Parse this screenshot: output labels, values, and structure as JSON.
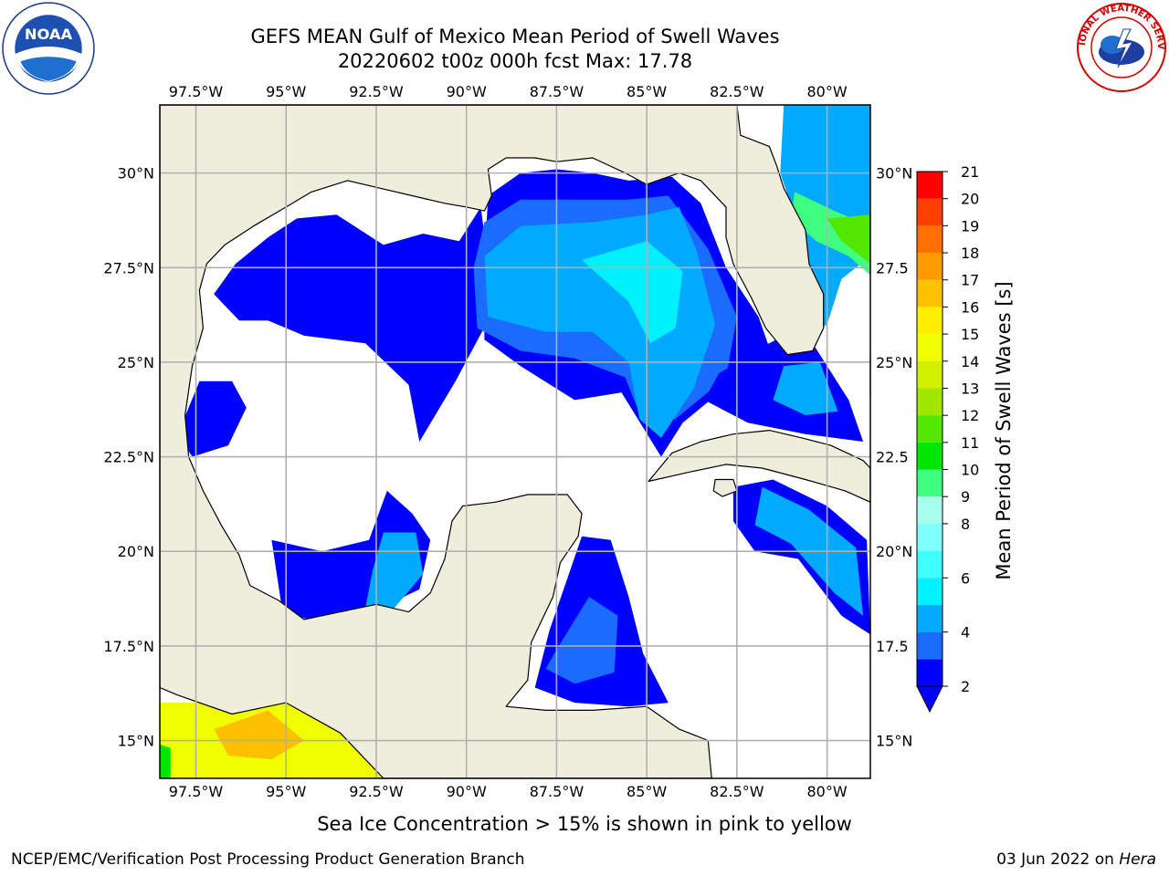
{
  "title": {
    "line1": "GEFS MEAN Gulf of Mexico Mean Period of Swell Waves",
    "line2": "20220602 t00z 000h fcst   Max: 17.78"
  },
  "map": {
    "lon_range": [
      -98.5,
      -78.8
    ],
    "lat_range": [
      14.0,
      31.8
    ],
    "lon_ticks": [
      {
        "value": -97.5,
        "label": "97.5°W"
      },
      {
        "value": -95.0,
        "label": "95°W"
      },
      {
        "value": -92.5,
        "label": "92.5°W"
      },
      {
        "value": -90.0,
        "label": "90°W"
      },
      {
        "value": -87.5,
        "label": "87.5°W"
      },
      {
        "value": -85.0,
        "label": "85°W"
      },
      {
        "value": -82.5,
        "label": "82.5°W"
      },
      {
        "value": -80.0,
        "label": "80°W"
      }
    ],
    "lat_ticks_left": [
      {
        "value": 30.0,
        "label": "30°N"
      },
      {
        "value": 27.5,
        "label": "27.5°N"
      },
      {
        "value": 25.0,
        "label": "25°N"
      },
      {
        "value": 22.5,
        "label": "22.5°N"
      },
      {
        "value": 20.0,
        "label": "20°N"
      },
      {
        "value": 17.5,
        "label": "17.5°N"
      },
      {
        "value": 15.0,
        "label": "15°N"
      }
    ],
    "lat_ticks_right": [
      {
        "value": 30.0,
        "label": "30°N"
      },
      {
        "value": 27.5,
        "label": "27.5"
      },
      {
        "value": 25.0,
        "label": "25°N"
      },
      {
        "value": 22.5,
        "label": "22.5"
      },
      {
        "value": 20.0,
        "label": "20°N"
      },
      {
        "value": 17.5,
        "label": "17.5"
      },
      {
        "value": 15.0,
        "label": "15°N"
      }
    ],
    "colors": {
      "land": "#efeedd",
      "grid": "#b0b0b0",
      "coast": "#000000"
    }
  },
  "colorbar": {
    "label": "Mean Period of Swell Waves [s]",
    "levels": [
      2,
      3,
      4,
      5,
      6,
      7,
      8,
      9,
      10,
      11,
      12,
      13,
      14,
      15,
      16,
      17,
      18,
      19,
      20,
      21
    ],
    "tick_labels": [
      "2",
      "4",
      "6",
      "8",
      "9",
      "10",
      "11",
      "12",
      "13",
      "14",
      "15",
      "16",
      "17",
      "18",
      "19",
      "20",
      "21"
    ],
    "tick_values": [
      2,
      4,
      6,
      8,
      9,
      10,
      11,
      12,
      13,
      14,
      15,
      16,
      17,
      18,
      19,
      20,
      21
    ],
    "colors": [
      "#0000ff",
      "#1a6cff",
      "#00aaff",
      "#00f0ff",
      "#40ffff",
      "#80ffff",
      "#a8ffee",
      "#40ff80",
      "#00e600",
      "#52e600",
      "#a0e600",
      "#d0f000",
      "#f0ff00",
      "#ffee00",
      "#ffc000",
      "#ff9a00",
      "#ff7000",
      "#ff4000",
      "#ff0000"
    ]
  },
  "swell_regions": [
    {
      "name": "texas-louisiana-shelf",
      "level": 2,
      "polygon": [
        [
          -94.7,
          28.8
        ],
        [
          -93.6,
          28.9
        ],
        [
          -92.3,
          28.1
        ],
        [
          -91.2,
          28.4
        ],
        [
          -90.2,
          28.2
        ],
        [
          -89.6,
          29.1
        ],
        [
          -89.4,
          27.6
        ],
        [
          -89.4,
          26.1
        ],
        [
          -90.3,
          24.5
        ],
        [
          -91.3,
          22.9
        ],
        [
          -91.6,
          24.4
        ],
        [
          -92.8,
          25.5
        ],
        [
          -94.5,
          25.7
        ],
        [
          -95.5,
          26.1
        ],
        [
          -96.3,
          26.1
        ],
        [
          -97.0,
          26.8
        ],
        [
          -96.4,
          27.6
        ],
        [
          -95.5,
          28.3
        ]
      ]
    },
    {
      "name": "north-central-gulf",
      "level": 2,
      "polygon": [
        [
          -89.4,
          29.4
        ],
        [
          -88.5,
          30.0
        ],
        [
          -87.5,
          30.1
        ],
        [
          -86.5,
          30.0
        ],
        [
          -85.5,
          29.8
        ],
        [
          -84.3,
          29.9
        ],
        [
          -83.5,
          29.2
        ],
        [
          -82.8,
          27.5
        ],
        [
          -81.9,
          26.2
        ],
        [
          -81.5,
          25.1
        ],
        [
          -82.6,
          24.5
        ],
        [
          -84.0,
          23.4
        ],
        [
          -84.6,
          22.5
        ],
        [
          -85.7,
          24.2
        ],
        [
          -87.0,
          24.0
        ],
        [
          -88.5,
          24.9
        ],
        [
          -89.5,
          25.6
        ],
        [
          -89.5,
          27.6
        ]
      ]
    },
    {
      "name": "north-central-gulf-inner",
      "level": 3,
      "polygon": [
        [
          -89.5,
          28.7
        ],
        [
          -88.5,
          29.3
        ],
        [
          -87.0,
          29.3
        ],
        [
          -85.5,
          29.3
        ],
        [
          -84.4,
          29.4
        ],
        [
          -83.3,
          28.0
        ],
        [
          -82.5,
          26.2
        ],
        [
          -82.8,
          24.6
        ],
        [
          -84.2,
          23.5
        ],
        [
          -85.1,
          23.4
        ],
        [
          -85.6,
          24.6
        ],
        [
          -87.0,
          25.1
        ],
        [
          -88.5,
          25.3
        ],
        [
          -89.7,
          25.9
        ],
        [
          -89.8,
          27.5
        ]
      ]
    },
    {
      "name": "north-central-gulf-core",
      "level": 4,
      "polygon": [
        [
          -89.5,
          27.8
        ],
        [
          -88.5,
          28.6
        ],
        [
          -86.5,
          28.7
        ],
        [
          -85.0,
          28.9
        ],
        [
          -84.1,
          29.1
        ],
        [
          -83.6,
          27.9
        ],
        [
          -83.1,
          26.0
        ],
        [
          -83.7,
          24.3
        ],
        [
          -84.6,
          23.0
        ],
        [
          -85.2,
          23.5
        ],
        [
          -85.5,
          25.0
        ],
        [
          -86.5,
          25.8
        ],
        [
          -87.8,
          25.8
        ],
        [
          -89.4,
          26.2
        ]
      ]
    },
    {
      "name": "north-central-gulf-peak",
      "level": 5,
      "polygon": [
        [
          -86.8,
          27.7
        ],
        [
          -85.0,
          28.2
        ],
        [
          -84.0,
          27.4
        ],
        [
          -84.2,
          25.9
        ],
        [
          -84.9,
          25.5
        ],
        [
          -85.5,
          26.6
        ]
      ]
    },
    {
      "name": "bay-of-campeche",
      "level": 2,
      "polygon": [
        [
          -95.4,
          20.3
        ],
        [
          -94.0,
          20.0
        ],
        [
          -92.7,
          20.3
        ],
        [
          -92.2,
          21.6
        ],
        [
          -91.5,
          21.0
        ],
        [
          -91.0,
          20.3
        ],
        [
          -91.3,
          19.0
        ],
        [
          -92.6,
          18.4
        ],
        [
          -94.0,
          18.1
        ],
        [
          -95.1,
          18.4
        ]
      ]
    },
    {
      "name": "bay-of-campeche-inner",
      "level": 4,
      "polygon": [
        [
          -92.3,
          20.5
        ],
        [
          -91.4,
          20.5
        ],
        [
          -91.2,
          19.4
        ],
        [
          -92.0,
          18.5
        ],
        [
          -92.8,
          18.5
        ],
        [
          -92.6,
          19.5
        ]
      ]
    },
    {
      "name": "southern-texas-patch",
      "level": 2,
      "polygon": [
        [
          -97.4,
          24.5
        ],
        [
          -96.5,
          24.5
        ],
        [
          -96.1,
          23.8
        ],
        [
          -96.6,
          22.8
        ],
        [
          -97.6,
          22.5
        ],
        [
          -98.0,
          23.1
        ]
      ]
    },
    {
      "name": "yucatan-channel-west",
      "level": 2,
      "polygon": [
        [
          -87.7,
          17.9
        ],
        [
          -86.8,
          20.4
        ],
        [
          -86.0,
          20.3
        ],
        [
          -85.5,
          18.8
        ],
        [
          -85.1,
          17.3
        ],
        [
          -84.4,
          16.0
        ],
        [
          -85.5,
          15.9
        ],
        [
          -87.0,
          16.0
        ],
        [
          -88.1,
          16.4
        ]
      ]
    },
    {
      "name": "yucatan-channel-inner",
      "level": 3,
      "polygon": [
        [
          -87.5,
          17.4
        ],
        [
          -86.6,
          18.8
        ],
        [
          -85.8,
          18.3
        ],
        [
          -85.9,
          16.8
        ],
        [
          -87.0,
          16.5
        ],
        [
          -87.8,
          16.9
        ]
      ]
    },
    {
      "name": "florida-keys-straits",
      "level": 2,
      "polygon": [
        [
          -83.0,
          24.7
        ],
        [
          -81.8,
          25.4
        ],
        [
          -80.8,
          25.9
        ],
        [
          -80.4,
          25.5
        ],
        [
          -79.4,
          24.0
        ],
        [
          -79.0,
          22.9
        ],
        [
          -80.6,
          23.1
        ],
        [
          -82.2,
          23.4
        ],
        [
          -83.4,
          24.0
        ]
      ]
    },
    {
      "name": "florida-straits-inner",
      "level": 4,
      "polygon": [
        [
          -81.2,
          24.9
        ],
        [
          -80.2,
          25.0
        ],
        [
          -79.7,
          23.7
        ],
        [
          -80.6,
          23.6
        ],
        [
          -81.5,
          24.0
        ]
      ]
    },
    {
      "name": "atlantic-east-florida",
      "level": 4,
      "polygon": [
        [
          -81.2,
          31.8
        ],
        [
          -78.8,
          31.8
        ],
        [
          -78.8,
          27.8
        ],
        [
          -79.6,
          27.2
        ],
        [
          -80.0,
          26.0
        ],
        [
          -80.3,
          25.8
        ],
        [
          -80.8,
          26.7
        ],
        [
          -80.8,
          28.6
        ],
        [
          -81.3,
          30.0
        ]
      ]
    },
    {
      "name": "atlantic-east-florida-green",
      "level": 9,
      "polygon": [
        [
          -80.9,
          29.5
        ],
        [
          -79.8,
          29.0
        ],
        [
          -78.8,
          28.6
        ],
        [
          -78.8,
          27.3
        ],
        [
          -79.4,
          27.8
        ],
        [
          -80.3,
          28.2
        ],
        [
          -81.0,
          28.8
        ]
      ]
    },
    {
      "name": "atlantic-east-florida-lime",
      "level": 11,
      "polygon": [
        [
          -80.0,
          28.8
        ],
        [
          -78.8,
          28.9
        ],
        [
          -78.8,
          27.6
        ],
        [
          -79.6,
          28.2
        ]
      ]
    },
    {
      "name": "cayman-region",
      "level": 2,
      "polygon": [
        [
          -82.6,
          21.7
        ],
        [
          -81.5,
          21.9
        ],
        [
          -80.0,
          21.2
        ],
        [
          -78.9,
          20.3
        ],
        [
          -78.8,
          17.8
        ],
        [
          -79.6,
          18.3
        ],
        [
          -80.8,
          19.8
        ],
        [
          -82.0,
          20.0
        ],
        [
          -82.6,
          20.8
        ]
      ]
    },
    {
      "name": "cayman-region-inner",
      "level": 4,
      "polygon": [
        [
          -81.8,
          21.7
        ],
        [
          -80.5,
          21.1
        ],
        [
          -79.2,
          20.1
        ],
        [
          -79.0,
          18.3
        ],
        [
          -79.8,
          18.9
        ],
        [
          -81.0,
          20.2
        ],
        [
          -82.0,
          20.7
        ]
      ]
    },
    {
      "name": "pacific-swell",
      "level": 14,
      "polygon": [
        [
          -98.5,
          16.0
        ],
        [
          -96.0,
          16.0
        ],
        [
          -94.0,
          16.0
        ],
        [
          -92.8,
          14.6
        ],
        [
          -92.3,
          14.0
        ],
        [
          -98.5,
          14.0
        ]
      ]
    },
    {
      "name": "pacific-swell-core",
      "level": 16,
      "polygon": [
        [
          -97.0,
          15.3
        ],
        [
          -95.5,
          15.8
        ],
        [
          -94.5,
          15.0
        ],
        [
          -95.4,
          14.5
        ],
        [
          -96.6,
          14.6
        ]
      ]
    },
    {
      "name": "pacific-swell-edge",
      "level": 10,
      "polygon": [
        [
          -98.5,
          14.9
        ],
        [
          -98.2,
          14.8
        ],
        [
          -98.2,
          14.0
        ],
        [
          -98.5,
          14.0
        ]
      ]
    }
  ],
  "caption": "Sea Ice Concentration > 15% is shown in pink to yellow",
  "footer": {
    "left": "NCEP/EMC/Verification Post Processing Product Generation Branch",
    "right_date": "03 Jun 2022 on ",
    "right_machine": "Hera"
  },
  "logos": {
    "noaa_text": "NOAA",
    "nws_text": "NATIONAL WEATHER SERVICE"
  }
}
